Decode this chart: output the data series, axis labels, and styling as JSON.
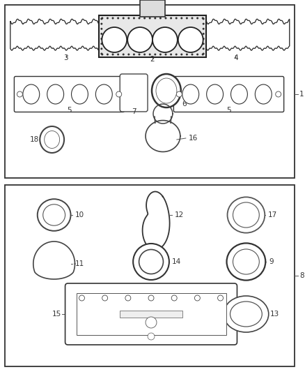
{
  "bg_color": "#ffffff",
  "border_color": "#333333",
  "lc": "#333333",
  "label_fs": 7.5
}
